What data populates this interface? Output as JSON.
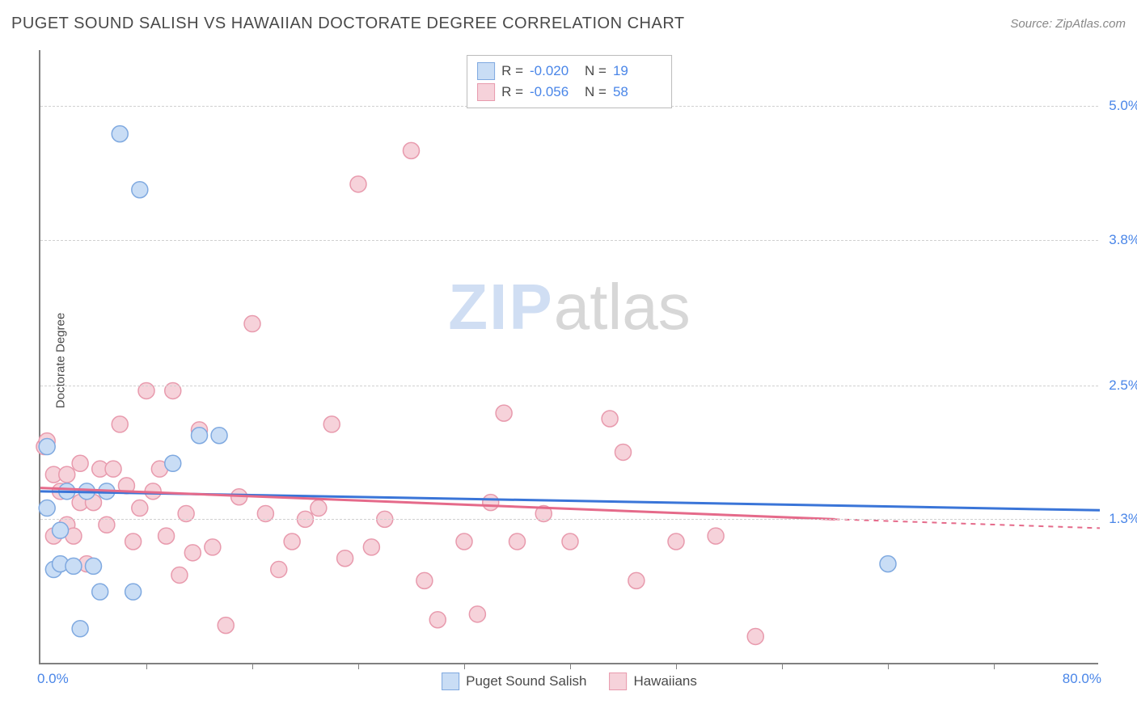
{
  "header": {
    "title": "PUGET SOUND SALISH VS HAWAIIAN DOCTORATE DEGREE CORRELATION CHART",
    "source_prefix": "Source: ",
    "source": "ZipAtlas.com"
  },
  "chart": {
    "type": "scatter",
    "xlim": [
      0,
      80
    ],
    "ylim": [
      0,
      5.5
    ],
    "x_axis_start_label": "0.0%",
    "x_axis_end_label": "80.0%",
    "ylabel": "Doctorate Degree",
    "yticks": [
      {
        "value": 1.3,
        "label": "1.3%"
      },
      {
        "value": 2.5,
        "label": "2.5%"
      },
      {
        "value": 3.8,
        "label": "3.8%"
      },
      {
        "value": 5.0,
        "label": "5.0%"
      }
    ],
    "xtick_values": [
      8,
      16,
      24,
      32,
      40,
      48,
      56,
      64,
      72
    ],
    "background_color": "#ffffff",
    "grid_color": "#d0d0d0",
    "axis_color": "#808080",
    "watermark": {
      "zip": "ZIP",
      "atlas": "atlas"
    },
    "series": [
      {
        "name": "Puget Sound Salish",
        "color_fill": "#c9ddf5",
        "color_stroke": "#7fa9e0",
        "line_color": "#3a75d8",
        "marker_radius": 10,
        "regression": {
          "x1": 0,
          "y1": 1.55,
          "x2": 80,
          "y2": 1.38
        },
        "r_label": "R =",
        "r_value": "-0.020",
        "n_label": "N =",
        "n_value": "19",
        "points": [
          [
            0.5,
            1.4
          ],
          [
            0.5,
            1.95
          ],
          [
            1.0,
            0.85
          ],
          [
            1.5,
            0.9
          ],
          [
            1.5,
            1.2
          ],
          [
            2.0,
            1.55
          ],
          [
            2.5,
            0.88
          ],
          [
            3.0,
            0.32
          ],
          [
            3.5,
            1.55
          ],
          [
            4.0,
            0.88
          ],
          [
            4.5,
            0.65
          ],
          [
            5.0,
            1.55
          ],
          [
            6.0,
            4.75
          ],
          [
            7.0,
            0.65
          ],
          [
            7.5,
            4.25
          ],
          [
            10.0,
            1.8
          ],
          [
            12.0,
            2.05
          ],
          [
            13.5,
            2.05
          ],
          [
            64.0,
            0.9
          ]
        ]
      },
      {
        "name": "Hawaiians",
        "color_fill": "#f6d2da",
        "color_stroke": "#e89aad",
        "line_color": "#e56a8a",
        "marker_radius": 10,
        "regression": {
          "x1": 0,
          "y1": 1.58,
          "x2": 60,
          "y2": 1.3
        },
        "regression_dash": {
          "x1": 60,
          "y1": 1.3,
          "x2": 80,
          "y2": 1.22
        },
        "r_label": "R =",
        "r_value": "-0.056",
        "n_label": "N =",
        "n_value": "58",
        "points": [
          [
            0.3,
            1.95
          ],
          [
            0.5,
            2.0
          ],
          [
            1.0,
            1.7
          ],
          [
            1.0,
            1.15
          ],
          [
            1.5,
            1.55
          ],
          [
            2.0,
            1.25
          ],
          [
            2.0,
            1.7
          ],
          [
            2.5,
            1.15
          ],
          [
            3.0,
            1.45
          ],
          [
            3.0,
            1.8
          ],
          [
            3.5,
            0.9
          ],
          [
            4.0,
            1.45
          ],
          [
            4.5,
            1.75
          ],
          [
            5.0,
            1.25
          ],
          [
            5.5,
            1.75
          ],
          [
            6.0,
            2.15
          ],
          [
            6.5,
            1.6
          ],
          [
            7.0,
            1.1
          ],
          [
            7.5,
            1.4
          ],
          [
            8.0,
            2.45
          ],
          [
            8.5,
            1.55
          ],
          [
            9.0,
            1.75
          ],
          [
            9.5,
            1.15
          ],
          [
            10.0,
            2.45
          ],
          [
            10.5,
            0.8
          ],
          [
            11.0,
            1.35
          ],
          [
            11.5,
            1.0
          ],
          [
            12.0,
            2.1
          ],
          [
            13.0,
            1.05
          ],
          [
            14.0,
            0.35
          ],
          [
            15.0,
            1.5
          ],
          [
            16.0,
            3.05
          ],
          [
            17.0,
            1.35
          ],
          [
            18.0,
            0.85
          ],
          [
            19.0,
            1.1
          ],
          [
            20.0,
            1.3
          ],
          [
            21.0,
            1.4
          ],
          [
            22.0,
            2.15
          ],
          [
            23.0,
            0.95
          ],
          [
            24.0,
            4.3
          ],
          [
            25.0,
            1.05
          ],
          [
            26.0,
            1.3
          ],
          [
            28.0,
            4.6
          ],
          [
            29.0,
            0.75
          ],
          [
            30.0,
            0.4
          ],
          [
            32.0,
            1.1
          ],
          [
            33.0,
            0.45
          ],
          [
            34.0,
            1.45
          ],
          [
            35.0,
            2.25
          ],
          [
            36.0,
            1.1
          ],
          [
            38.0,
            1.35
          ],
          [
            40.0,
            1.1
          ],
          [
            43.0,
            2.2
          ],
          [
            44.0,
            1.9
          ],
          [
            45.0,
            0.75
          ],
          [
            48.0,
            1.1
          ],
          [
            51.0,
            1.15
          ],
          [
            54.0,
            0.25
          ]
        ]
      }
    ],
    "legend_bottom": [
      {
        "label": "Puget Sound Salish",
        "fill": "#c9ddf5",
        "stroke": "#7fa9e0"
      },
      {
        "label": "Hawaiians",
        "fill": "#f6d2da",
        "stroke": "#e89aad"
      }
    ]
  }
}
